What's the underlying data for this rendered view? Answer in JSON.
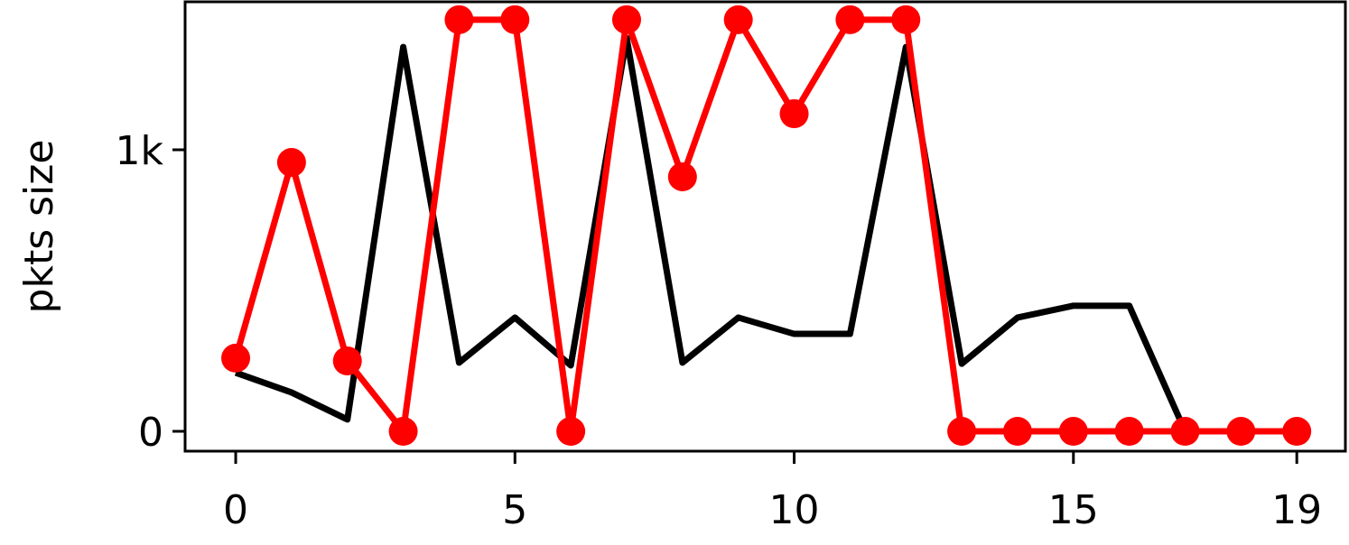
{
  "chart_data": {
    "type": "line",
    "y_label": "pkts size",
    "x": [
      0,
      1,
      2,
      3,
      4,
      5,
      6,
      7,
      8,
      9,
      10,
      11,
      12,
      13,
      14,
      15,
      16,
      17,
      18,
      19
    ],
    "series": [
      {
        "color": "#000000",
        "marker": false,
        "values": [
          208,
          138,
          42,
          1365,
          244,
          404,
          234,
          1397,
          244,
          404,
          346,
          346,
          1365,
          240,
          404,
          446,
          446,
          0,
          0,
          0
        ]
      },
      {
        "color": "#ff0000",
        "marker": true,
        "values": [
          260,
          955,
          250,
          0,
          1462,
          1462,
          0,
          1462,
          904,
          1462,
          1128,
          1462,
          1462,
          0,
          0,
          0,
          0,
          0,
          0,
          0
        ]
      }
    ],
    "xlim": [
      -0.906,
      19.87
    ],
    "ylim": [
      -70.5,
      1525.6
    ],
    "xticks": [
      0,
      5,
      10,
      15,
      19
    ],
    "yticks": [
      0,
      {
        "value": 1000,
        "label": "1k"
      }
    ]
  }
}
